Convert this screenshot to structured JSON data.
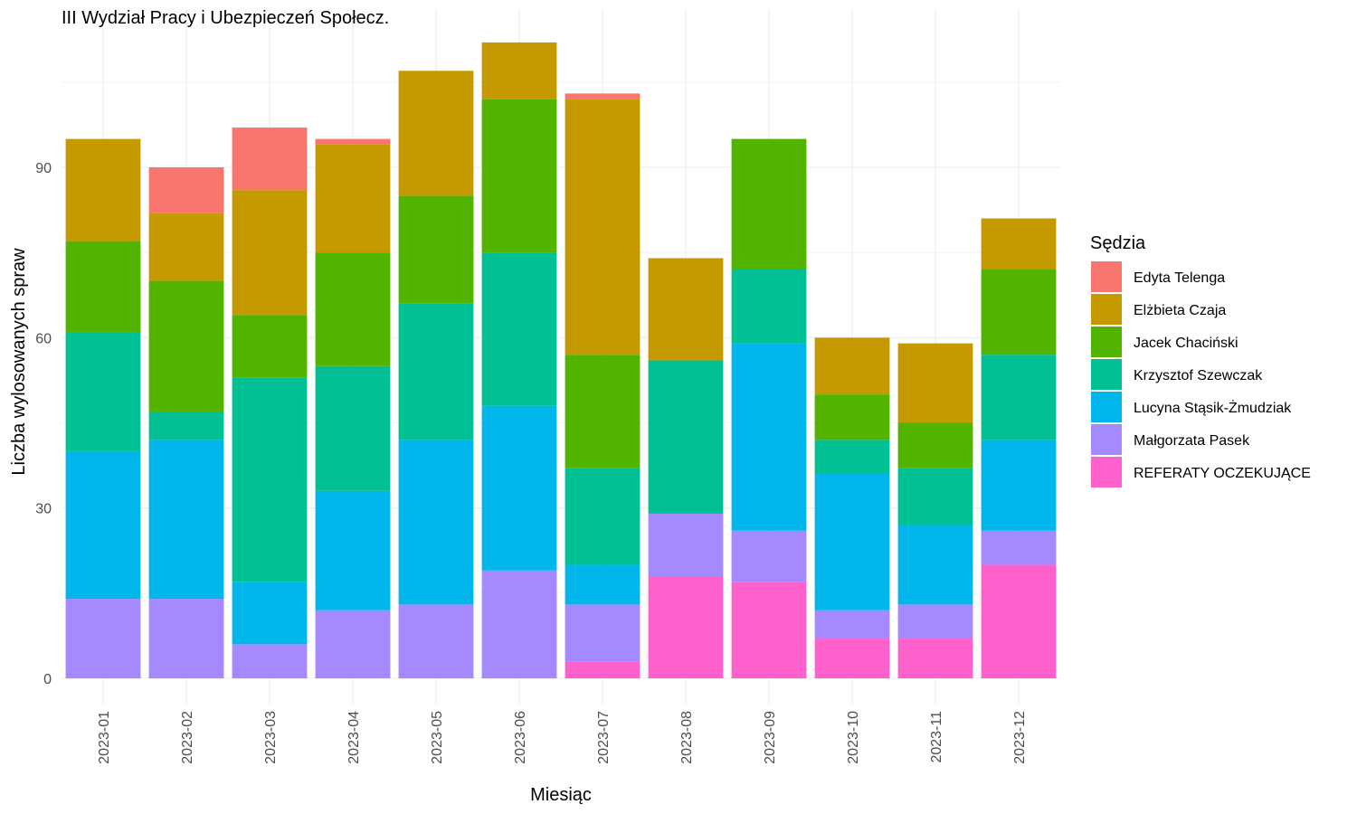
{
  "chart_data": {
    "type": "bar",
    "stacked": true,
    "title": "III Wydział Pracy i Ubezpieczeń Społecz.",
    "xlabel": "Miesiąc",
    "ylabel": "Liczba wylosowanych spraw",
    "ylim": [
      0,
      118
    ],
    "yticks": [
      0,
      30,
      60,
      90
    ],
    "grid": true,
    "legend_title": "Sędzia",
    "legend_position": "right",
    "categories": [
      "2023-01",
      "2023-02",
      "2023-03",
      "2023-04",
      "2023-05",
      "2023-06",
      "2023-07",
      "2023-08",
      "2023-09",
      "2023-10",
      "2023-11",
      "2023-12"
    ],
    "series": [
      {
        "name": "REFERATY OCZEKUJĄCE",
        "color": "#FF61CC",
        "values": [
          0,
          0,
          0,
          0,
          0,
          0,
          3,
          18,
          17,
          7,
          7,
          20
        ]
      },
      {
        "name": "Małgorzata Pasek",
        "color": "#A58AFF",
        "values": [
          14,
          14,
          6,
          12,
          13,
          19,
          10,
          11,
          9,
          5,
          6,
          6
        ]
      },
      {
        "name": "Lucyna Stąsik-Żmudziak",
        "color": "#00B6EB",
        "values": [
          26,
          28,
          11,
          21,
          29,
          29,
          7,
          0,
          33,
          24,
          14,
          16
        ]
      },
      {
        "name": "Krzysztof Szewczak",
        "color": "#00C094",
        "values": [
          21,
          5,
          36,
          22,
          24,
          27,
          17,
          27,
          13,
          6,
          10,
          15
        ]
      },
      {
        "name": "Jacek Chaciński",
        "color": "#53B400",
        "values": [
          16,
          23,
          11,
          20,
          19,
          27,
          20,
          0,
          23,
          8,
          8,
          15
        ]
      },
      {
        "name": "Elżbieta Czaja",
        "color": "#C49A00",
        "values": [
          18,
          12,
          22,
          19,
          22,
          10,
          45,
          18,
          0,
          10,
          14,
          9
        ]
      },
      {
        "name": "Edyta Telenga",
        "color": "#F8766D",
        "values": [
          0,
          8,
          11,
          1,
          0,
          0,
          1,
          0,
          0,
          0,
          0,
          0
        ]
      }
    ],
    "legend_order": [
      "Edyta Telenga",
      "Elżbieta Czaja",
      "Jacek Chaciński",
      "Krzysztof Szewczak",
      "Lucyna Stąsik-Żmudziak",
      "Małgorzata Pasek",
      "REFERATY OCZEKUJĄCE"
    ]
  }
}
